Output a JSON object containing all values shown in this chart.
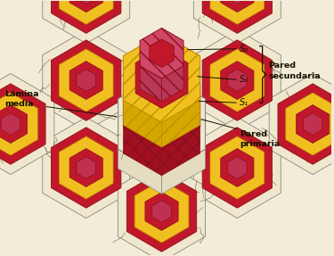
{
  "bg_color": "#f2ecd8",
  "labels": {
    "lamina_media": "Lámina\nmedia",
    "pared_secundaria": "Pared\nsecundaria",
    "pared_primaria": "Pared\nprimaria",
    "s1": "S₁",
    "s2": "S₂",
    "s3": "S₃"
  },
  "colors": {
    "cream": "#f0e8ce",
    "cream_side": "#e4dcc0",
    "red": "#c0182a",
    "red_dark": "#8a0e1c",
    "red_side": "#a01020",
    "yellow": "#f0c020",
    "yellow_side": "#d4a800",
    "yellow_dark": "#c09000",
    "pink": "#d04868",
    "pink_side": "#b83858",
    "pink_inner": "#c03050",
    "white_mesh": "#ede5d0",
    "edge_gray": "#888880",
    "edge_dark": "#333322",
    "ann": "#111100",
    "crack": "#6a6050"
  },
  "figsize": [
    3.75,
    2.87
  ],
  "dpi": 100
}
